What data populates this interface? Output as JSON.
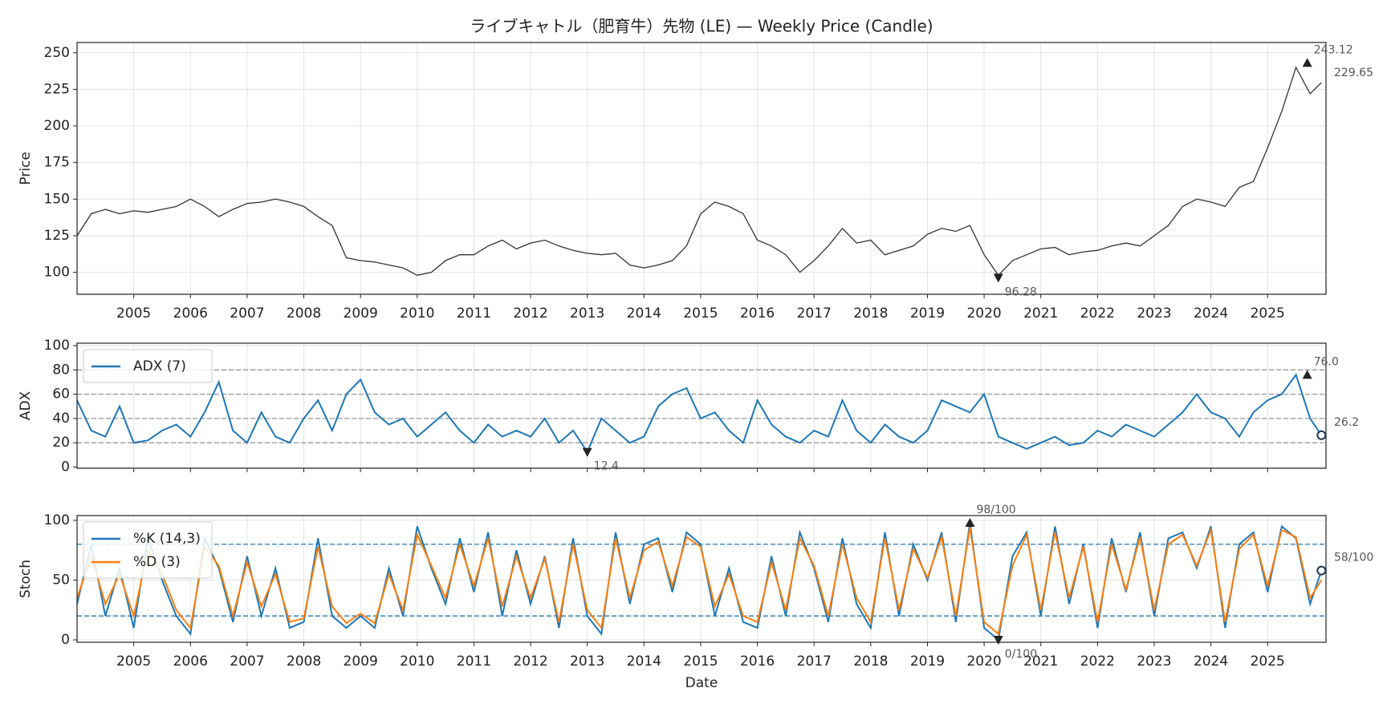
{
  "chart_data": [
    {
      "type": "line",
      "title": "ライブキャトル（肥育牛）先物 (LE) — Weekly Price (Candle)",
      "ylabel": "Price",
      "grid": true,
      "show_xtick_labels": true,
      "x": [
        2004,
        2004.25,
        2004.5,
        2004.75,
        2005,
        2005.25,
        2005.5,
        2005.75,
        2006,
        2006.25,
        2006.5,
        2006.75,
        2007,
        2007.25,
        2007.5,
        2007.75,
        2008,
        2008.25,
        2008.5,
        2008.75,
        2009,
        2009.25,
        2009.5,
        2009.75,
        2010,
        2010.25,
        2010.5,
        2010.75,
        2011,
        2011.25,
        2011.5,
        2011.75,
        2012,
        2012.25,
        2012.5,
        2012.75,
        2013,
        2013.25,
        2013.5,
        2013.75,
        2014,
        2014.25,
        2014.5,
        2014.75,
        2015,
        2015.25,
        2015.5,
        2015.75,
        2016,
        2016.25,
        2016.5,
        2016.75,
        2017,
        2017.25,
        2017.5,
        2017.75,
        2018,
        2018.25,
        2018.5,
        2018.75,
        2019,
        2019.25,
        2019.5,
        2019.75,
        2020,
        2020.25,
        2020.5,
        2020.75,
        2021,
        2021.25,
        2021.5,
        2021.75,
        2022,
        2022.25,
        2022.5,
        2022.75,
        2023,
        2023.25,
        2023.5,
        2023.75,
        2024,
        2024.25,
        2024.5,
        2024.75,
        2025,
        2025.25,
        2025.5,
        2025.75,
        2025.95
      ],
      "series": [
        {
          "name": "Price",
          "color": "#333333",
          "values": [
            125,
            140,
            143,
            140,
            142,
            141,
            143,
            145,
            150,
            145,
            138,
            143,
            147,
            148,
            150,
            148,
            145,
            138,
            132,
            110,
            108,
            107,
            105,
            103,
            98,
            100,
            108,
            112,
            112,
            118,
            122,
            116,
            120,
            122,
            118,
            115,
            113,
            112,
            113,
            105,
            103,
            105,
            108,
            118,
            140,
            148,
            145,
            140,
            122,
            118,
            112,
            100,
            108,
            118,
            130,
            120,
            122,
            112,
            115,
            118,
            126,
            130,
            128,
            132,
            112,
            98,
            108,
            112,
            116,
            117,
            112,
            114,
            115,
            118,
            120,
            118,
            125,
            132,
            145,
            150,
            148,
            145,
            158,
            162,
            185,
            210,
            240,
            222,
            229.65
          ]
        }
      ],
      "xlim": [
        2004,
        2026.03
      ],
      "xticks": [
        2005,
        2006,
        2007,
        2008,
        2009,
        2010,
        2011,
        2012,
        2013,
        2014,
        2015,
        2016,
        2017,
        2018,
        2019,
        2020,
        2021,
        2022,
        2023,
        2024,
        2025
      ],
      "ylim": [
        85,
        257
      ],
      "yticks": [
        100,
        125,
        150,
        175,
        200,
        225,
        250
      ],
      "annotations": [
        {
          "x": 2025.7,
          "value": 243.12,
          "label": "243.12",
          "marker": "up"
        },
        {
          "x": 2020.25,
          "value": 96.28,
          "label": "96.28",
          "marker": "down"
        },
        {
          "x": 2025.95,
          "value": 229.65,
          "label": "229.65",
          "marker": "none"
        }
      ]
    },
    {
      "type": "line",
      "ylabel": "ADX",
      "grid": true,
      "show_xtick_labels": false,
      "legend": "upper left",
      "x": [
        2004,
        2004.25,
        2004.5,
        2004.75,
        2005,
        2005.25,
        2005.5,
        2005.75,
        2006,
        2006.25,
        2006.5,
        2006.75,
        2007,
        2007.25,
        2007.5,
        2007.75,
        2008,
        2008.25,
        2008.5,
        2008.75,
        2009,
        2009.25,
        2009.5,
        2009.75,
        2010,
        2010.25,
        2010.5,
        2010.75,
        2011,
        2011.25,
        2011.5,
        2011.75,
        2012,
        2012.25,
        2012.5,
        2012.75,
        2013,
        2013.25,
        2013.5,
        2013.75,
        2014,
        2014.25,
        2014.5,
        2014.75,
        2015,
        2015.25,
        2015.5,
        2015.75,
        2016,
        2016.25,
        2016.5,
        2016.75,
        2017,
        2017.25,
        2017.5,
        2017.75,
        2018,
        2018.25,
        2018.5,
        2018.75,
        2019,
        2019.25,
        2019.5,
        2019.75,
        2020,
        2020.25,
        2020.5,
        2020.75,
        2021,
        2021.25,
        2021.5,
        2021.75,
        2022,
        2022.25,
        2022.5,
        2022.75,
        2023,
        2023.25,
        2023.5,
        2023.75,
        2024,
        2024.25,
        2024.5,
        2024.75,
        2025,
        2025.25,
        2025.5,
        2025.75,
        2025.95
      ],
      "series": [
        {
          "name": "ADX (7)",
          "color": "#1f77b4",
          "values": [
            55,
            30,
            25,
            50,
            20,
            22,
            30,
            35,
            25,
            45,
            70,
            30,
            20,
            45,
            25,
            20,
            40,
            55,
            30,
            60,
            72,
            45,
            35,
            40,
            25,
            35,
            45,
            30,
            20,
            35,
            25,
            30,
            25,
            40,
            20,
            30,
            12.4,
            40,
            30,
            20,
            25,
            50,
            60,
            65,
            40,
            45,
            30,
            20,
            55,
            35,
            25,
            20,
            30,
            25,
            55,
            30,
            20,
            35,
            25,
            20,
            30,
            55,
            50,
            45,
            60,
            25,
            20,
            15,
            20,
            25,
            18,
            20,
            30,
            25,
            35,
            30,
            25,
            35,
            45,
            60,
            45,
            40,
            25,
            45,
            55,
            60,
            76,
            40,
            26.2
          ]
        }
      ],
      "xlim": [
        2004,
        2026.03
      ],
      "xticks": [
        2005,
        2006,
        2007,
        2008,
        2009,
        2010,
        2011,
        2012,
        2013,
        2014,
        2015,
        2016,
        2017,
        2018,
        2019,
        2020,
        2021,
        2022,
        2023,
        2024,
        2025
      ],
      "ylim": [
        -1,
        102
      ],
      "yticks": [
        0,
        20,
        40,
        60,
        80,
        100
      ],
      "hlines": [
        20,
        40,
        60,
        80
      ],
      "hline_color": "#999999",
      "annotations": [
        {
          "x": 2025.7,
          "value": 76.0,
          "label": "76.0",
          "marker": "up"
        },
        {
          "x": 2013.0,
          "value": 12.4,
          "label": "12.4",
          "marker": "down"
        },
        {
          "x": 2025.95,
          "value": 26.2,
          "label": "26.2",
          "marker": "circle"
        }
      ]
    },
    {
      "type": "line",
      "ylabel": "Stoch",
      "xlabel": "Date",
      "grid": true,
      "show_xtick_labels": true,
      "legend": "upper left",
      "x": [
        2004,
        2004.25,
        2004.5,
        2004.75,
        2005,
        2005.25,
        2005.5,
        2005.75,
        2006,
        2006.25,
        2006.5,
        2006.75,
        2007,
        2007.25,
        2007.5,
        2007.75,
        2008,
        2008.25,
        2008.5,
        2008.75,
        2009,
        2009.25,
        2009.5,
        2009.75,
        2010,
        2010.25,
        2010.5,
        2010.75,
        2011,
        2011.25,
        2011.5,
        2011.75,
        2012,
        2012.25,
        2012.5,
        2012.75,
        2013,
        2013.25,
        2013.5,
        2013.75,
        2014,
        2014.25,
        2014.5,
        2014.75,
        2015,
        2015.25,
        2015.5,
        2015.75,
        2016,
        2016.25,
        2016.5,
        2016.75,
        2017,
        2017.25,
        2017.5,
        2017.75,
        2018,
        2018.25,
        2018.5,
        2018.75,
        2019,
        2019.25,
        2019.5,
        2019.75,
        2020,
        2020.25,
        2020.5,
        2020.75,
        2021,
        2021.25,
        2021.5,
        2021.75,
        2022,
        2022.25,
        2022.5,
        2022.75,
        2023,
        2023.25,
        2023.5,
        2023.75,
        2024,
        2024.25,
        2024.5,
        2024.75,
        2025,
        2025.25,
        2025.5,
        2025.75,
        2025.95
      ],
      "series": [
        {
          "name": "%K (14,3)",
          "color": "#1f77b4",
          "values": [
            30,
            80,
            20,
            60,
            10,
            85,
            50,
            20,
            5,
            85,
            60,
            15,
            70,
            20,
            60,
            10,
            15,
            85,
            20,
            10,
            20,
            10,
            60,
            20,
            95,
            60,
            30,
            85,
            40,
            90,
            20,
            75,
            30,
            70,
            10,
            85,
            20,
            5,
            90,
            30,
            80,
            85,
            40,
            90,
            80,
            20,
            60,
            15,
            10,
            70,
            20,
            90,
            60,
            15,
            85,
            30,
            10,
            90,
            20,
            80,
            50,
            90,
            15,
            98,
            10,
            0,
            70,
            90,
            20,
            95,
            30,
            80,
            10,
            85,
            40,
            90,
            20,
            85,
            90,
            60,
            95,
            10,
            80,
            90,
            40,
            95,
            85,
            30,
            58
          ]
        },
        {
          "name": "%D (3)",
          "color": "#ff7f0e",
          "values": [
            35,
            70,
            30,
            55,
            20,
            75,
            55,
            25,
            10,
            78,
            62,
            20,
            65,
            28,
            55,
            15,
            18,
            78,
            28,
            14,
            22,
            14,
            55,
            25,
            88,
            62,
            35,
            80,
            45,
            85,
            28,
            70,
            35,
            68,
            15,
            80,
            25,
            10,
            85,
            35,
            75,
            82,
            45,
            86,
            78,
            28,
            55,
            20,
            15,
            65,
            25,
            85,
            62,
            20,
            80,
            35,
            15,
            85,
            25,
            76,
            52,
            86,
            20,
            94,
            15,
            5,
            62,
            88,
            25,
            90,
            35,
            78,
            15,
            80,
            42,
            86,
            25,
            80,
            88,
            62,
            92,
            15,
            76,
            88,
            45,
            92,
            86,
            35,
            50
          ]
        }
      ],
      "xlim": [
        2004,
        2026.03
      ],
      "xticks": [
        2005,
        2006,
        2007,
        2008,
        2009,
        2010,
        2011,
        2012,
        2013,
        2014,
        2015,
        2016,
        2017,
        2018,
        2019,
        2020,
        2021,
        2022,
        2023,
        2024,
        2025
      ],
      "ylim": [
        -2,
        104
      ],
      "yticks": [
        0,
        50,
        100
      ],
      "hlines": [
        20,
        80
      ],
      "hline_color": "#1f77b4",
      "annotations": [
        {
          "x": 2019.75,
          "value": 98,
          "label": "98/100",
          "marker": "up"
        },
        {
          "x": 2020.25,
          "value": 0,
          "label": "0/100",
          "marker": "down"
        },
        {
          "x": 2025.95,
          "value": 58,
          "label": "58/100",
          "marker": "circle"
        }
      ]
    }
  ]
}
